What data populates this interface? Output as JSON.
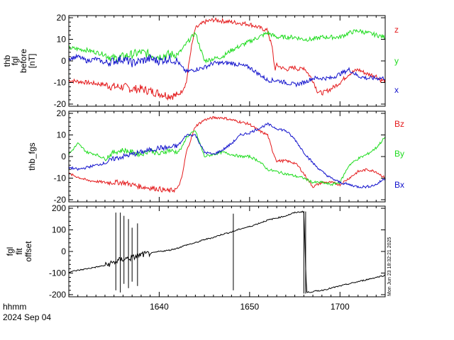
{
  "colors": {
    "red": "#e41a1c",
    "green": "#1fdc1f",
    "blue": "#1212cc",
    "black": "#000000"
  },
  "footer": {
    "xlabel_line1": "hhmm",
    "xlabel_line2": "2024 Sep 04"
  },
  "timestamp": "Mon Jun 23 18:32:21 2025",
  "chart_data": [
    {
      "type": "line",
      "ylabel": [
        "thb",
        "fgl",
        "before",
        "[nT]"
      ],
      "ylim": [
        -21,
        21
      ],
      "yticks": [
        -20,
        -10,
        0,
        10,
        20
      ],
      "x_range_hhmm": [
        "16:30",
        "17:05"
      ],
      "xticks": [
        {
          "label": "1640",
          "t": 10
        },
        {
          "label": "1650",
          "t": 20
        },
        {
          "label": "1700",
          "t": 30
        }
      ],
      "series": [
        {
          "name": "z",
          "color": "red",
          "points": [
            [
              0,
              -9
            ],
            [
              2,
              -10
            ],
            [
              4,
              -11
            ],
            [
              5,
              -12
            ],
            [
              6,
              -12
            ],
            [
              7,
              -13
            ],
            [
              8,
              -13
            ],
            [
              9,
              -14
            ],
            [
              10,
              -15
            ],
            [
              11,
              -16
            ],
            [
              12,
              -16
            ],
            [
              12.5,
              -14
            ],
            [
              13,
              -10
            ],
            [
              13.5,
              5
            ],
            [
              14,
              15
            ],
            [
              15,
              18
            ],
            [
              16,
              19
            ],
            [
              18,
              18
            ],
            [
              20,
              17
            ],
            [
              22,
              14
            ],
            [
              22.5,
              6
            ],
            [
              22.8,
              -4
            ],
            [
              23,
              -2
            ],
            [
              24,
              -4
            ],
            [
              25,
              -3
            ],
            [
              25.5,
              -4
            ],
            [
              26,
              -3
            ],
            [
              27,
              -9
            ],
            [
              27.5,
              -14
            ],
            [
              28,
              -15
            ],
            [
              29,
              -13
            ],
            [
              30,
              -10
            ],
            [
              31,
              -6
            ],
            [
              32,
              -4
            ],
            [
              33,
              -6
            ],
            [
              34,
              -7
            ],
            [
              34.5,
              -9
            ],
            [
              35,
              -9
            ]
          ]
        },
        {
          "name": "y",
          "color": "green",
          "points": [
            [
              0,
              6
            ],
            [
              2,
              5
            ],
            [
              4,
              3
            ],
            [
              5,
              1
            ],
            [
              6,
              2
            ],
            [
              7,
              3
            ],
            [
              8,
              4
            ],
            [
              9,
              3
            ],
            [
              10,
              2
            ],
            [
              11,
              3
            ],
            [
              12,
              3
            ],
            [
              12.5,
              5
            ],
            [
              13,
              8
            ],
            [
              14,
              13
            ],
            [
              15,
              0
            ],
            [
              16,
              1
            ],
            [
              17,
              2
            ],
            [
              18,
              5
            ],
            [
              19,
              7
            ],
            [
              20,
              9
            ],
            [
              21,
              11
            ],
            [
              22,
              13
            ],
            [
              23,
              11
            ],
            [
              24,
              11
            ],
            [
              25,
              11
            ],
            [
              26,
              10
            ],
            [
              27,
              10
            ],
            [
              28,
              11
            ],
            [
              29,
              11
            ],
            [
              30,
              11
            ],
            [
              31,
              13
            ],
            [
              32,
              14
            ],
            [
              33,
              13
            ],
            [
              34,
              12
            ],
            [
              35,
              11
            ]
          ]
        },
        {
          "name": "x",
          "color": "blue",
          "points": [
            [
              0,
              1
            ],
            [
              1,
              2
            ],
            [
              2,
              0
            ],
            [
              3,
              1
            ],
            [
              4,
              -1
            ],
            [
              5,
              0
            ],
            [
              6,
              1
            ],
            [
              7,
              -1
            ],
            [
              8,
              0
            ],
            [
              9,
              1
            ],
            [
              10,
              0
            ],
            [
              11,
              1
            ],
            [
              12,
              0
            ],
            [
              12.5,
              -3
            ],
            [
              13,
              -5
            ],
            [
              14,
              -4
            ],
            [
              15,
              -3
            ],
            [
              16,
              -1
            ],
            [
              18,
              -1
            ],
            [
              20,
              -3
            ],
            [
              22,
              -9
            ],
            [
              23,
              -9
            ],
            [
              24,
              -10
            ],
            [
              25,
              -11
            ],
            [
              26,
              -10
            ],
            [
              27,
              -8
            ],
            [
              28,
              -8
            ],
            [
              29,
              -8
            ],
            [
              30,
              -6
            ],
            [
              31,
              -4
            ],
            [
              32,
              -7
            ],
            [
              33,
              -8
            ],
            [
              34,
              -8
            ],
            [
              35,
              -8
            ]
          ]
        }
      ],
      "legend": [
        "z",
        "y",
        "x"
      ]
    },
    {
      "type": "line",
      "ylabel": [
        "thb_fgs"
      ],
      "ylim": [
        -21,
        21
      ],
      "yticks": [
        -20,
        -10,
        0,
        10,
        20
      ],
      "series": [
        {
          "name": "Bz",
          "color": "red",
          "points": [
            [
              0,
              -8
            ],
            [
              2,
              -11
            ],
            [
              4,
              -12
            ],
            [
              6,
              -12
            ],
            [
              8,
              -14
            ],
            [
              10,
              -15
            ],
            [
              11,
              -16
            ],
            [
              12,
              -15
            ],
            [
              12.5,
              -10
            ],
            [
              13,
              2
            ],
            [
              13.5,
              8
            ],
            [
              14,
              14
            ],
            [
              15,
              17
            ],
            [
              16,
              18
            ],
            [
              17,
              18
            ],
            [
              18,
              17
            ],
            [
              19,
              16
            ],
            [
              20,
              15
            ],
            [
              21,
              12
            ],
            [
              22,
              10
            ],
            [
              22.5,
              3
            ],
            [
              23,
              -2
            ],
            [
              24,
              -2
            ],
            [
              25,
              -3
            ],
            [
              25.5,
              -5
            ],
            [
              26,
              -8
            ],
            [
              27,
              -14
            ],
            [
              28,
              -12
            ],
            [
              29,
              -12
            ],
            [
              30,
              -13
            ],
            [
              31,
              -10
            ],
            [
              32,
              -7
            ],
            [
              33,
              -6
            ],
            [
              34,
              -7
            ],
            [
              35,
              -10
            ]
          ]
        },
        {
          "name": "By",
          "color": "green",
          "points": [
            [
              0,
              1
            ],
            [
              1,
              6
            ],
            [
              2,
              2
            ],
            [
              3,
              1
            ],
            [
              4,
              -1
            ],
            [
              5,
              2
            ],
            [
              6,
              3
            ],
            [
              7,
              2
            ],
            [
              8,
              1
            ],
            [
              9,
              3
            ],
            [
              10,
              1
            ],
            [
              11,
              3
            ],
            [
              12,
              2
            ],
            [
              12.5,
              4
            ],
            [
              13,
              9
            ],
            [
              14,
              12
            ],
            [
              15,
              0
            ],
            [
              16,
              1
            ],
            [
              17,
              2
            ],
            [
              18,
              1
            ],
            [
              19,
              0
            ],
            [
              20,
              0
            ],
            [
              21,
              -2
            ],
            [
              22,
              -6
            ],
            [
              23,
              -7
            ],
            [
              24,
              -8
            ],
            [
              25,
              -9
            ],
            [
              26,
              -10
            ],
            [
              27,
              -12
            ],
            [
              28,
              -12
            ],
            [
              29,
              -13
            ],
            [
              30,
              -12
            ],
            [
              31,
              -4
            ],
            [
              32,
              -1
            ],
            [
              33,
              1
            ],
            [
              34,
              4
            ],
            [
              35,
              9
            ]
          ]
        },
        {
          "name": "Bx",
          "color": "blue",
          "points": [
            [
              0,
              -5
            ],
            [
              1,
              -6
            ],
            [
              2,
              -5
            ],
            [
              3,
              -4
            ],
            [
              4,
              -3
            ],
            [
              5,
              -1
            ],
            [
              6,
              0
            ],
            [
              7,
              1
            ],
            [
              8,
              2
            ],
            [
              9,
              3
            ],
            [
              10,
              4
            ],
            [
              11,
              4
            ],
            [
              12,
              5
            ],
            [
              12.5,
              7
            ],
            [
              13,
              10
            ],
            [
              14,
              10
            ],
            [
              15,
              2
            ],
            [
              16,
              1
            ],
            [
              17,
              3
            ],
            [
              18,
              6
            ],
            [
              19,
              10
            ],
            [
              20,
              11
            ],
            [
              21,
              13
            ],
            [
              22,
              15
            ],
            [
              23,
              13
            ],
            [
              24,
              12
            ],
            [
              25,
              8
            ],
            [
              26,
              2
            ],
            [
              27,
              -3
            ],
            [
              28,
              -7
            ],
            [
              29,
              -10
            ],
            [
              30,
              -12
            ],
            [
              31,
              -13
            ],
            [
              32,
              -14
            ],
            [
              33,
              -14
            ],
            [
              34,
              -13
            ],
            [
              35,
              -10
            ]
          ]
        }
      ],
      "legend": [
        "Bz",
        "By",
        "Bx"
      ]
    },
    {
      "type": "line",
      "ylabel": [
        "fgl",
        "fit",
        "offset"
      ],
      "ylim": [
        -210,
        210
      ],
      "yticks": [
        -200,
        -100,
        0,
        100,
        200
      ],
      "series": [
        {
          "name": "offset",
          "color": "black",
          "points": [
            [
              0,
              -95
            ],
            [
              2,
              -80
            ],
            [
              4,
              -65
            ],
            [
              5,
              -50
            ],
            [
              6,
              -35
            ],
            [
              7,
              -30
            ],
            [
              8,
              -15
            ],
            [
              9,
              -10
            ],
            [
              10,
              0
            ],
            [
              11,
              5
            ],
            [
              12,
              15
            ],
            [
              13,
              30
            ],
            [
              14,
              40
            ],
            [
              15,
              55
            ],
            [
              16,
              65
            ],
            [
              17,
              80
            ],
            [
              18,
              90
            ],
            [
              19,
              105
            ],
            [
              20,
              115
            ],
            [
              21,
              130
            ],
            [
              22,
              145
            ],
            [
              23,
              155
            ],
            [
              24,
              165
            ],
            [
              25,
              180
            ],
            [
              26,
              185
            ],
            [
              26.3,
              -190
            ],
            [
              28,
              -180
            ],
            [
              30,
              -160
            ],
            [
              32,
              -140
            ],
            [
              34,
              -120
            ],
            [
              35,
              -110
            ]
          ]
        }
      ],
      "spikes": [
        {
          "t": 5.2,
          "min": -180,
          "max": 180
        },
        {
          "t": 5.7,
          "min": -190,
          "max": 180
        },
        {
          "t": 6.1,
          "min": -150,
          "max": 165
        },
        {
          "t": 6.6,
          "min": -170,
          "max": 150
        },
        {
          "t": 7.0,
          "min": -140,
          "max": 110
        },
        {
          "t": 7.6,
          "min": -160,
          "max": 130
        },
        {
          "t": 18.2,
          "min": -180,
          "max": 175
        },
        {
          "t": 26.0,
          "min": -195,
          "max": 185
        },
        {
          "t": 26.2,
          "min": -195,
          "max": 185
        }
      ]
    }
  ]
}
